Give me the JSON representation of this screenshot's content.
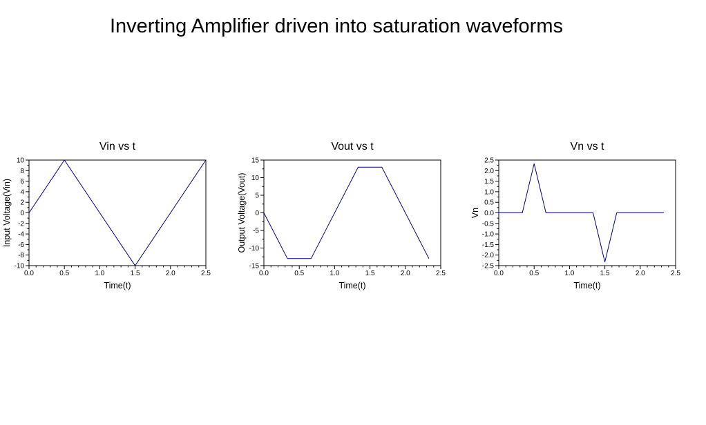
{
  "figure_title": "Inverting Amplifier driven into saturation waveforms",
  "colors": {
    "line": "#00007f",
    "axis": "#000000",
    "background": "#ffffff"
  },
  "chart_data": [
    {
      "type": "line",
      "title": "Vin vs t",
      "xlabel": "Time(t)",
      "ylabel": "Input Voltage(Vin)",
      "xlim": [
        0,
        2.5
      ],
      "ylim": [
        -10,
        10
      ],
      "xticks": [
        0,
        0.5,
        1,
        1.5,
        2,
        2.5
      ],
      "xtick_labels": [
        "0.0",
        "0.5",
        "1.0",
        "1.5",
        "2.0",
        "2.5"
      ],
      "yticks": [
        -10,
        -8,
        -6,
        -4,
        -2,
        0,
        2,
        4,
        6,
        8,
        10
      ],
      "ytick_labels": [
        "-10",
        "-8",
        "-6",
        "-4",
        "-2",
        "0",
        "2",
        "4",
        "6",
        "8",
        "10"
      ],
      "grid": false,
      "series": [
        {
          "x": [
            0,
            0.5,
            1.5,
            2.5
          ],
          "y": [
            0,
            10,
            -10,
            10
          ]
        }
      ]
    },
    {
      "type": "line",
      "title": "Vout vs t",
      "xlabel": "Time(t)",
      "ylabel": "Output Voltage(Vout)",
      "xlim": [
        0,
        2.5
      ],
      "ylim": [
        -15,
        15
      ],
      "xticks": [
        0,
        0.5,
        1,
        1.5,
        2,
        2.5
      ],
      "xtick_labels": [
        "0.0",
        "0.5",
        "1.0",
        "1.5",
        "2.0",
        "2.5"
      ],
      "yticks": [
        -15,
        -10,
        -5,
        0,
        5,
        10,
        15
      ],
      "ytick_labels": [
        "-15",
        "-10",
        "-5",
        "0",
        "5",
        "10",
        "15"
      ],
      "grid": false,
      "series": [
        {
          "x": [
            0,
            0.333,
            0.667,
            1.333,
            1.667,
            2.333
          ],
          "y": [
            0,
            -13,
            -13,
            13,
            13,
            -13
          ]
        }
      ]
    },
    {
      "type": "line",
      "title": "Vn vs t",
      "xlabel": "Time(t)",
      "ylabel": "Vn",
      "xlim": [
        0,
        2.5
      ],
      "ylim": [
        -2.5,
        2.5
      ],
      "xticks": [
        0,
        0.5,
        1,
        1.5,
        2,
        2.5
      ],
      "xtick_labels": [
        "0.0",
        "0.5",
        "1.0",
        "1.5",
        "2.0",
        "2.5"
      ],
      "yticks": [
        -2.5,
        -2,
        -1.5,
        -1,
        -0.5,
        0,
        0.5,
        1,
        1.5,
        2,
        2.5
      ],
      "ytick_labels": [
        "-2.5",
        "-2.0",
        "-1.5",
        "-1.0",
        "-0.5",
        "0.0",
        "0.5",
        "1.0",
        "1.5",
        "2.0",
        "2.5"
      ],
      "grid": false,
      "series": [
        {
          "x": [
            0,
            0.333,
            0.5,
            0.667,
            1.333,
            1.5,
            1.667,
            2.333
          ],
          "y": [
            0,
            0,
            2.33,
            0,
            0,
            -2.33,
            0,
            0
          ]
        }
      ]
    }
  ]
}
